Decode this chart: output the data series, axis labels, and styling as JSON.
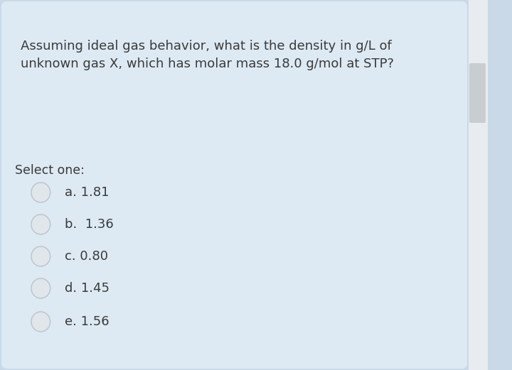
{
  "question_line1": "Assuming ideal gas behavior, what is the density in g/L of",
  "question_line2": "unknown gas X, which has molar mass 18.0 g/mol at STP?",
  "select_label": "Select one:",
  "options": [
    "a. 1.81",
    "b.  1.36",
    "c. 0.80",
    "d. 1.45",
    "e. 1.56"
  ],
  "bg_color": "#c9d9e8",
  "card_color": "#ddeaf4",
  "text_color": "#3a3a3a",
  "circle_fill": "#e0e6ea",
  "circle_edge": "#c0c8d0",
  "scrollbar_color": "#c8cdd2",
  "scrollbar_bg": "#e8ecf0",
  "question_fontsize": 13.0,
  "select_fontsize": 12.5,
  "option_fontsize": 13.0,
  "fig_width": 7.2,
  "fig_height": 5.21
}
